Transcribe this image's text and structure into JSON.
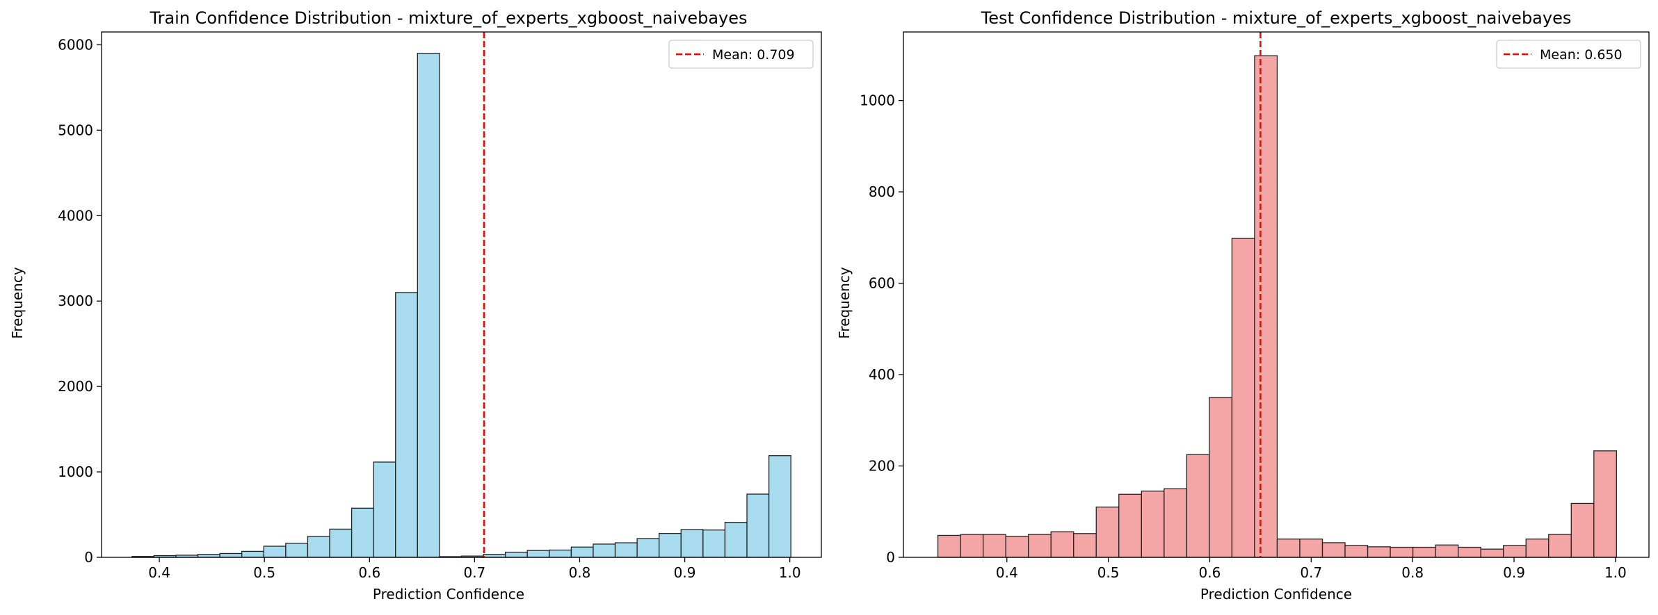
{
  "chart_data": [
    {
      "type": "bar",
      "title": "Train Confidence Distribution - mixture_of_experts_xgboost_naivebayes",
      "xlabel": "Prediction Confidence",
      "ylabel": "Frequency",
      "xlim": [
        0.345,
        1.03
      ],
      "ylim": [
        0,
        6150
      ],
      "xticks": [
        0.4,
        0.5,
        0.6,
        0.7,
        0.8,
        0.9,
        1.0
      ],
      "xtick_labels": [
        "0.4",
        "0.5",
        "0.6",
        "0.7",
        "0.8",
        "0.9",
        "1.0"
      ],
      "yticks": [
        0,
        1000,
        2000,
        3000,
        4000,
        5000,
        6000
      ],
      "ytick_labels": [
        "0",
        "1000",
        "2000",
        "3000",
        "4000",
        "5000",
        "6000"
      ],
      "bin_start": 0.374,
      "bin_width": 0.0209,
      "values": [
        10,
        20,
        25,
        35,
        45,
        70,
        130,
        165,
        245,
        330,
        575,
        1115,
        3100,
        5900,
        8,
        15,
        35,
        60,
        80,
        85,
        120,
        155,
        170,
        220,
        280,
        325,
        320,
        410,
        740,
        1190
      ],
      "bar_color": "#a8dbee",
      "edge_color": "#222222",
      "mean_line": {
        "value": 0.709,
        "color": "#ff0000"
      },
      "legend": {
        "label": "Mean: 0.709",
        "position": "upper right"
      }
    },
    {
      "type": "bar",
      "title": "Test Confidence Distribution - mixture_of_experts_xgboost_naivebayes",
      "xlabel": "Prediction Confidence",
      "ylabel": "Frequency",
      "xlim": [
        0.298,
        1.033
      ],
      "ylim": [
        0,
        1150
      ],
      "xticks": [
        0.4,
        0.5,
        0.6,
        0.7,
        0.8,
        0.9,
        1.0
      ],
      "xtick_labels": [
        "0.4",
        "0.5",
        "0.6",
        "0.7",
        "0.8",
        "0.9",
        "1.0"
      ],
      "yticks": [
        0,
        200,
        400,
        600,
        800,
        1000
      ],
      "ytick_labels": [
        "0",
        "200",
        "400",
        "600",
        "800",
        "1000"
      ],
      "bin_start": 0.332,
      "bin_width": 0.0223,
      "values": [
        48,
        50,
        50,
        46,
        50,
        56,
        52,
        110,
        138,
        145,
        150,
        225,
        350,
        698,
        1098,
        40,
        40,
        32,
        26,
        23,
        22,
        22,
        27,
        22,
        18,
        26,
        40,
        50,
        118,
        233
      ],
      "bar_color": "#f4a6a6",
      "edge_color": "#222222",
      "mean_line": {
        "value": 0.65,
        "color": "#ff0000"
      },
      "legend": {
        "label": "Mean: 0.650",
        "position": "upper right"
      }
    }
  ]
}
